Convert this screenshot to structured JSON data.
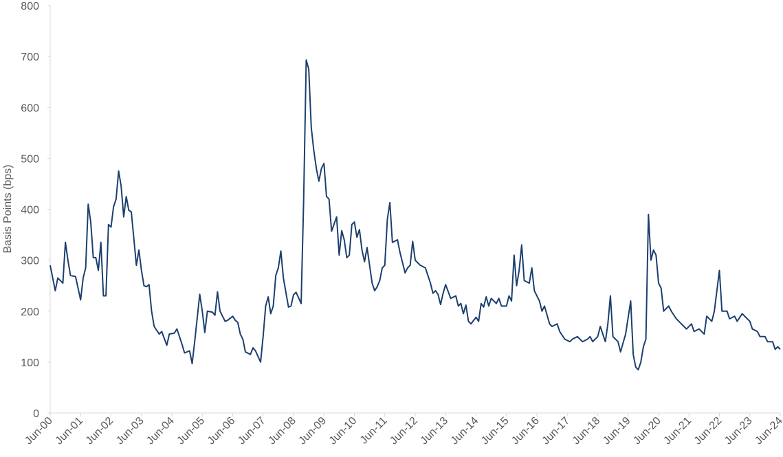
{
  "chart_data": {
    "type": "line",
    "y_label": "Basis Points (bps)",
    "color": "#1c3f6e",
    "x": [
      "Jun-00",
      "Jul-00",
      "Aug-00",
      "Sep-00",
      "Nov-00",
      "Dec-00",
      "Jan-01",
      "Feb-01",
      "Apr-01",
      "Jun-01",
      "Jul-01",
      "Aug-01",
      "Sep-01",
      "Oct-01",
      "Nov-01",
      "Dec-01",
      "Jan-02",
      "Feb-02",
      "Mar-02",
      "Apr-02",
      "May-02",
      "Jun-02",
      "Jul-02",
      "Aug-02",
      "Sep-02",
      "Oct-02",
      "Nov-02",
      "Dec-02",
      "Jan-03",
      "Feb-03",
      "Apr-03",
      "May-03",
      "Jun-03",
      "Jul-03",
      "Aug-03",
      "Sep-03",
      "Oct-03",
      "Nov-03",
      "Jan-04",
      "Feb-04",
      "Apr-04",
      "May-04",
      "Jul-04",
      "Aug-04",
      "Oct-04",
      "Nov-04",
      "Jan-05",
      "Feb-05",
      "Mar-05",
      "May-05",
      "Jun-05",
      "Jul-05",
      "Aug-05",
      "Oct-05",
      "Nov-05",
      "Dec-05",
      "Jan-06",
      "Mar-06",
      "Apr-06",
      "Jun-06",
      "Jul-06",
      "Aug-06",
      "Sep-06",
      "Oct-06",
      "Nov-06",
      "Jan-07",
      "Feb-07",
      "Mar-07",
      "May-07",
      "Jun-07",
      "Jul-07",
      "Aug-07",
      "Sep-07",
      "Oct-07",
      "Nov-07",
      "Dec-07",
      "Jan-08",
      "Feb-08",
      "Apr-08",
      "May-08",
      "Jun-08",
      "Jul-08",
      "Sep-08",
      "Oct-08",
      "Nov-08",
      "Dec-08",
      "Jan-09",
      "Feb-09",
      "Mar-09",
      "Apr-09",
      "May-09",
      "Jun-09",
      "Jul-09",
      "Aug-09",
      "Sep-09",
      "Nov-09",
      "Dec-09",
      "Jan-10",
      "Feb-10",
      "Mar-10",
      "Apr-10",
      "May-10",
      "Jun-10",
      "Jul-10",
      "Aug-10",
      "Sep-10",
      "Oct-10",
      "Nov-10",
      "Dec-10",
      "Jan-11",
      "Feb-11",
      "Mar-11",
      "Apr-11",
      "May-11",
      "Jun-11",
      "Jul-11",
      "Aug-11",
      "Sep-11",
      "Nov-11",
      "Dec-11",
      "Feb-12",
      "Mar-12",
      "Apr-12",
      "May-12",
      "Jun-12",
      "Aug-12",
      "Oct-12",
      "Nov-12",
      "Dec-12",
      "Jan-13",
      "Feb-13",
      "Mar-13",
      "Apr-13",
      "May-13",
      "Jun-13",
      "Aug-13",
      "Oct-13",
      "Nov-13",
      "Dec-13",
      "Jan-14",
      "Feb-14",
      "Mar-14",
      "Apr-14",
      "Jun-14",
      "Jul-14",
      "Aug-14",
      "Sep-14",
      "Oct-14",
      "Nov-14",
      "Dec-14",
      "Feb-15",
      "Mar-15",
      "Apr-15",
      "Jun-15",
      "Jul-15",
      "Aug-15",
      "Sep-15",
      "Oct-15",
      "Nov-15",
      "Dec-15",
      "Jan-16",
      "Mar-16",
      "Apr-16",
      "May-16",
      "Jul-16",
      "Aug-16",
      "Sep-16",
      "Nov-16",
      "Dec-16",
      "Feb-17",
      "Mar-17",
      "May-17",
      "Jul-17",
      "Aug-17",
      "Oct-17",
      "Dec-17",
      "Feb-18",
      "Mar-18",
      "Apr-18",
      "Jun-18",
      "Jul-18",
      "Sep-18",
      "Oct-18",
      "Nov-18",
      "Dec-18",
      "Feb-19",
      "Mar-19",
      "May-19",
      "Jul-19",
      "Aug-19",
      "Sep-19",
      "Oct-19",
      "Nov-19",
      "Dec-19",
      "Jan-20",
      "Feb-20",
      "Mar-20",
      "Apr-20",
      "May-20",
      "Jun-20",
      "Jul-20",
      "Aug-20",
      "Oct-20",
      "Nov-20",
      "Jan-21",
      "Feb-21",
      "Apr-21",
      "May-21",
      "Jul-21",
      "Aug-21",
      "Oct-21",
      "Dec-21",
      "Jan-22",
      "Mar-22",
      "Apr-22",
      "Jun-22",
      "Jul-22",
      "Sep-22",
      "Oct-22",
      "Dec-22",
      "Jan-23",
      "Mar-23",
      "Apr-23",
      "Jun-23",
      "Jul-23",
      "Sep-23",
      "Oct-23",
      "Dec-23",
      "Jan-24",
      "Mar-24",
      "Apr-24",
      "May-24",
      "Jun-24"
    ],
    "values": [
      290,
      265,
      240,
      265,
      255,
      335,
      300,
      270,
      268,
      222,
      265,
      285,
      410,
      375,
      305,
      305,
      280,
      335,
      230,
      230,
      370,
      365,
      405,
      420,
      475,
      445,
      385,
      425,
      398,
      395,
      290,
      320,
      280,
      250,
      248,
      252,
      200,
      170,
      155,
      160,
      133,
      155,
      157,
      165,
      135,
      118,
      122,
      97,
      140,
      233,
      200,
      158,
      200,
      198,
      192,
      238,
      200,
      180,
      182,
      190,
      182,
      178,
      155,
      145,
      120,
      115,
      128,
      122,
      100,
      150,
      210,
      228,
      195,
      210,
      270,
      285,
      318,
      265,
      208,
      210,
      232,
      237,
      215,
      420,
      693,
      675,
      560,
      515,
      480,
      455,
      480,
      490,
      425,
      420,
      357,
      385,
      310,
      358,
      340,
      305,
      310,
      370,
      375,
      345,
      360,
      320,
      297,
      325,
      290,
      255,
      240,
      248,
      260,
      285,
      290,
      380,
      413,
      335,
      340,
      315,
      275,
      285,
      290,
      337,
      300,
      290,
      285,
      270,
      255,
      235,
      240,
      233,
      213,
      235,
      252,
      225,
      230,
      210,
      215,
      195,
      212,
      180,
      175,
      188,
      180,
      215,
      208,
      228,
      210,
      225,
      215,
      225,
      210,
      210,
      230,
      220,
      310,
      250,
      280,
      330,
      260,
      255,
      285,
      240,
      220,
      200,
      210,
      175,
      170,
      175,
      160,
      145,
      140,
      145,
      150,
      140,
      145,
      150,
      140,
      150,
      170,
      140,
      175,
      230,
      150,
      140,
      120,
      155,
      220,
      115,
      90,
      85,
      100,
      130,
      145,
      390,
      300,
      320,
      310,
      255,
      245,
      200,
      210,
      200,
      185,
      180,
      170,
      165,
      175,
      160,
      165,
      155,
      190,
      180,
      200,
      280,
      200,
      200,
      185,
      190,
      180,
      195,
      190,
      180,
      165,
      160,
      150,
      150,
      140,
      140,
      125,
      130,
      125
    ],
    "xlim": [
      "Jun-00",
      "Jun-24"
    ],
    "xticks": [
      "Jun-00",
      "Jun-01",
      "Jun-02",
      "Jun-03",
      "Jun-04",
      "Jun-05",
      "Jun-06",
      "Jun-07",
      "Jun-08",
      "Jun-09",
      "Jun-10",
      "Jun-11",
      "Jun-12",
      "Jun-13",
      "Jun-14",
      "Jun-15",
      "Jun-16",
      "Jun-17",
      "Jun-18",
      "Jun-19",
      "Jun-20",
      "Jun-21",
      "Jun-22",
      "Jun-23",
      "Jun-24"
    ],
    "ylim": [
      0,
      800
    ],
    "yticks": [
      0,
      100,
      200,
      300,
      400,
      500,
      600,
      700,
      800
    ],
    "grid": false
  }
}
